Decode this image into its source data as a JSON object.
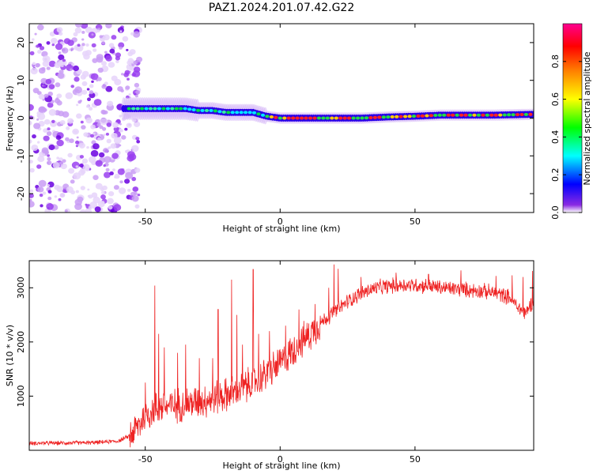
{
  "title": "PAZ1.2024.201.07.42.G22",
  "chart_data": [
    {
      "type": "heatmap",
      "xlabel": "Height of straight line (km)",
      "ylabel": "Frequency (Hz)",
      "xlim": [
        -93,
        94
      ],
      "ylim": [
        -25,
        25
      ],
      "xticks": [
        -50,
        0,
        50
      ],
      "yticks": [
        20,
        10,
        0,
        -10,
        -20
      ],
      "grid": false,
      "colorbar": {
        "label": "Normalized spectral amplitude",
        "range": [
          0,
          1
        ],
        "ticks": [
          0.0,
          0.2,
          0.4,
          0.6,
          0.8
        ],
        "colors": [
          "#ffffff",
          "#7a00ff",
          "#0000ff",
          "#00ffff",
          "#00ff00",
          "#ffff00",
          "#ff7f00",
          "#ff0000",
          "#ff0090"
        ]
      },
      "ridge": {
        "x": [
          -58,
          -50,
          -40,
          -35,
          -30,
          -25,
          -20,
          -15,
          -10,
          -5,
          0,
          10,
          20,
          30,
          40,
          50,
          60,
          70,
          80,
          94
        ],
        "y": [
          2.5,
          2.5,
          2.5,
          2.5,
          2,
          2,
          1.5,
          1.5,
          1.5,
          0.5,
          0,
          0,
          0,
          0,
          0.3,
          0.5,
          0.8,
          0.8,
          0.8,
          1
        ]
      }
    },
    {
      "type": "line",
      "xlabel": "Height of straight line (km)",
      "ylabel": "SNR (10 * v/v)",
      "xlim": [
        -93,
        94
      ],
      "ylim": [
        0,
        3500
      ],
      "xticks": [
        -50,
        0,
        50
      ],
      "yticks": [
        1000,
        2000,
        3000
      ],
      "grid": false,
      "series_color": "#ee2222",
      "envelope": {
        "x": [
          -93,
          -70,
          -60,
          -56,
          -53,
          -50,
          -45,
          -40,
          -35,
          -30,
          -25,
          -20,
          -15,
          -10,
          -5,
          0,
          5,
          10,
          15,
          20,
          25,
          30,
          35,
          40,
          45,
          50,
          55,
          60,
          65,
          70,
          75,
          80,
          85,
          88,
          91,
          94
        ],
        "y": [
          130,
          140,
          170,
          260,
          420,
          650,
          800,
          820,
          860,
          900,
          960,
          1020,
          1120,
          1250,
          1420,
          1600,
          1850,
          2100,
          2350,
          2550,
          2750,
          2900,
          2990,
          3030,
          3050,
          3050,
          3030,
          3000,
          2980,
          2960,
          2940,
          2900,
          2830,
          2650,
          2520,
          2800
        ]
      },
      "spikes": [
        {
          "x": -50,
          "y": 1250
        },
        {
          "x": -46.5,
          "y": 3040
        },
        {
          "x": -45,
          "y": 2150
        },
        {
          "x": -43,
          "y": 1900
        },
        {
          "x": -38,
          "y": 1800
        },
        {
          "x": -35,
          "y": 1950
        },
        {
          "x": -30,
          "y": 1700
        },
        {
          "x": -25,
          "y": 1700
        },
        {
          "x": -23,
          "y": 2600
        },
        {
          "x": -18,
          "y": 3150
        },
        {
          "x": -16,
          "y": 2500
        },
        {
          "x": -14,
          "y": 1950
        },
        {
          "x": -10,
          "y": 3340
        },
        {
          "x": -8,
          "y": 2150
        },
        {
          "x": -4,
          "y": 2200
        },
        {
          "x": 2,
          "y": 2300
        },
        {
          "x": 7,
          "y": 2600
        },
        {
          "x": 13,
          "y": 2700
        },
        {
          "x": 18,
          "y": 3000
        },
        {
          "x": 20,
          "y": 3430
        },
        {
          "x": 21.5,
          "y": 3350
        },
        {
          "x": 30,
          "y": 3200
        },
        {
          "x": 43,
          "y": 3280
        },
        {
          "x": 55,
          "y": 3250
        },
        {
          "x": 67,
          "y": 3320
        },
        {
          "x": 80,
          "y": 3220
        },
        {
          "x": 86,
          "y": 3230
        },
        {
          "x": 90,
          "y": 3200
        },
        {
          "x": 93.5,
          "y": 3310
        }
      ]
    }
  ]
}
